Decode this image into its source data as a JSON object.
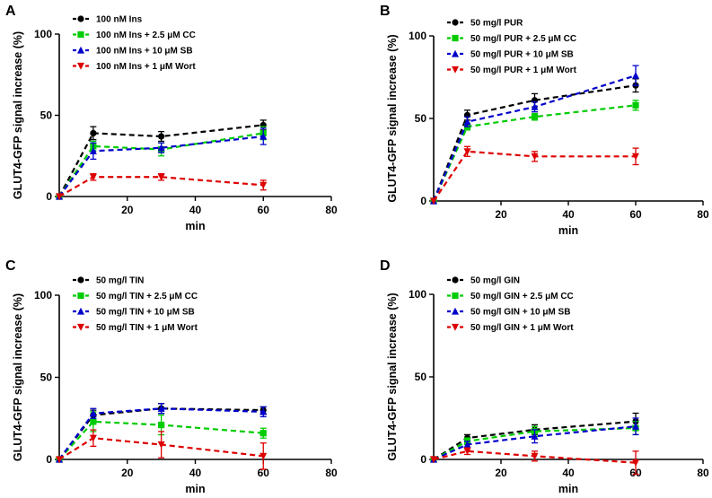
{
  "chart_data": [
    {
      "panel": "A",
      "type": "line",
      "xlabel": "min",
      "ylabel": "GLUT4-GFP signal increase (%)",
      "xlim": [
        0,
        80
      ],
      "ylim": [
        0,
        100
      ],
      "xticks": [
        20,
        40,
        60,
        80
      ],
      "yticks": [
        0,
        50,
        100
      ],
      "x": [
        0,
        10,
        30,
        60
      ],
      "series": [
        {
          "name": "100 nM Ins",
          "color": "#000000",
          "marker": "circle",
          "values": [
            0,
            39,
            37,
            44
          ],
          "errors": [
            0,
            4,
            3,
            3
          ]
        },
        {
          "name": "100 nM Ins + 2.5 μM CC",
          "color": "#00cc00",
          "marker": "square",
          "values": [
            0,
            31,
            29,
            39
          ],
          "errors": [
            0,
            3,
            4,
            4
          ]
        },
        {
          "name": "100 nM Ins + 10 μM SB",
          "color": "#0000cc",
          "marker": "triangle-up",
          "values": [
            0,
            28,
            30,
            37
          ],
          "errors": [
            0,
            5,
            3,
            5
          ]
        },
        {
          "name": "100 nM Ins + 1 μM Wort",
          "color": "#dd0000",
          "marker": "triangle-down",
          "values": [
            0,
            12,
            12,
            7
          ],
          "errors": [
            0,
            2,
            2,
            3
          ]
        }
      ]
    },
    {
      "panel": "B",
      "type": "line",
      "xlabel": "min",
      "ylabel": "GLUT4-GFP signal increase (%)",
      "xlim": [
        0,
        80
      ],
      "ylim": [
        0,
        100
      ],
      "xticks": [
        20,
        40,
        60,
        80
      ],
      "yticks": [
        0,
        50,
        100
      ],
      "x": [
        0,
        10,
        30,
        60
      ],
      "series": [
        {
          "name": "50 mg/l PUR",
          "color": "#000000",
          "marker": "circle",
          "values": [
            0,
            52,
            61,
            70
          ],
          "errors": [
            0,
            3,
            4,
            4
          ]
        },
        {
          "name": "50 mg/l PUR + 2.5 μM CC",
          "color": "#00cc00",
          "marker": "square",
          "values": [
            0,
            45,
            51,
            58
          ],
          "errors": [
            0,
            2,
            2,
            3
          ]
        },
        {
          "name": "50 mg/l PUR + 10 μM SB",
          "color": "#0000cc",
          "marker": "triangle-up",
          "values": [
            0,
            48,
            57,
            76
          ],
          "errors": [
            0,
            3,
            3,
            6
          ]
        },
        {
          "name": "50 mg/l PUR + 1 μM Wort",
          "color": "#dd0000",
          "marker": "triangle-down",
          "values": [
            0,
            30,
            27,
            27
          ],
          "errors": [
            0,
            3,
            3,
            5
          ]
        }
      ]
    },
    {
      "panel": "C",
      "type": "line",
      "xlabel": "min",
      "ylabel": "GLUT4-GFP signal increase (%)",
      "xlim": [
        0,
        80
      ],
      "ylim": [
        0,
        100
      ],
      "xticks": [
        20,
        40,
        60,
        80
      ],
      "yticks": [
        0,
        50,
        100
      ],
      "x": [
        0,
        10,
        30,
        60
      ],
      "series": [
        {
          "name": "50 mg/l TIN",
          "color": "#000000",
          "marker": "circle",
          "values": [
            0,
            27,
            31,
            30
          ],
          "errors": [
            0,
            3,
            3,
            2
          ]
        },
        {
          "name": "50 mg/l TIN + 2.5 μM CC",
          "color": "#00cc00",
          "marker": "square",
          "values": [
            0,
            23,
            21,
            16
          ],
          "errors": [
            0,
            6,
            6,
            3
          ]
        },
        {
          "name": "50 mg/l TIN + 10 μM SB",
          "color": "#0000cc",
          "marker": "triangle-up",
          "values": [
            0,
            28,
            31,
            29
          ],
          "errors": [
            0,
            3,
            3,
            3
          ]
        },
        {
          "name": "50 mg/l TIN + 1 μM Wort",
          "color": "#dd0000",
          "marker": "triangle-down",
          "values": [
            0,
            13,
            9,
            2
          ],
          "errors": [
            0,
            5,
            8,
            8
          ]
        }
      ]
    },
    {
      "panel": "D",
      "type": "line",
      "xlabel": "min",
      "ylabel": "GLUT4-GFP signal increase (%)",
      "xlim": [
        0,
        80
      ],
      "ylim": [
        0,
        100
      ],
      "xticks": [
        20,
        40,
        60,
        80
      ],
      "yticks": [
        0,
        50,
        100
      ],
      "x": [
        0,
        10,
        30,
        60
      ],
      "series": [
        {
          "name": "50 mg/l GIN",
          "color": "#000000",
          "marker": "circle",
          "values": [
            0,
            13,
            18,
            23
          ],
          "errors": [
            0,
            2,
            3,
            5
          ]
        },
        {
          "name": "50 mg/l GIN + 2.5 μM CC",
          "color": "#00cc00",
          "marker": "square",
          "values": [
            0,
            11,
            17,
            19
          ],
          "errors": [
            0,
            2,
            3,
            4
          ]
        },
        {
          "name": "50 mg/l GIN + 10 μM SB",
          "color": "#0000cc",
          "marker": "triangle-up",
          "values": [
            0,
            9,
            14,
            20
          ],
          "errors": [
            0,
            2,
            4,
            5
          ]
        },
        {
          "name": "50 mg/l GIN + 1 μM Wort",
          "color": "#dd0000",
          "marker": "triangle-down",
          "values": [
            0,
            5,
            2,
            -2
          ],
          "errors": [
            0,
            2,
            3,
            7
          ]
        }
      ]
    }
  ]
}
